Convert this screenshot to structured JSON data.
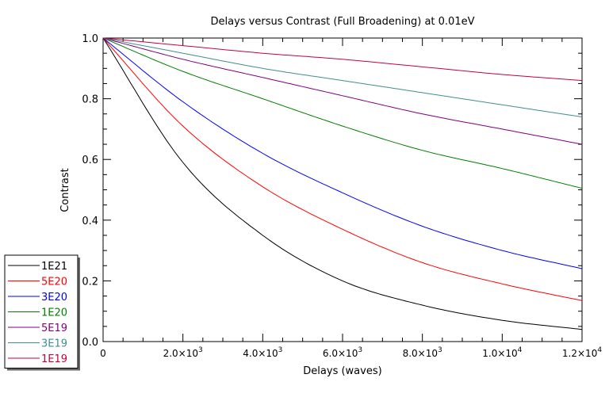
{
  "chart_data": {
    "type": "line",
    "title": "Delays versus Contrast (Full Broadening) at 0.01eV",
    "xlabel": "Delays (waves)",
    "ylabel": "Contrast",
    "xlim": [
      0,
      12000
    ],
    "ylim": [
      0.0,
      1.0
    ],
    "grid": false,
    "legend_position": "bottom-left (outside plot)",
    "x_ticks": [
      0,
      2000,
      4000,
      6000,
      8000,
      10000,
      12000
    ],
    "x_tick_labels": [
      {
        "mant": "0",
        "exp": ""
      },
      {
        "mant": "2.0×10",
        "exp": "3"
      },
      {
        "mant": "4.0×10",
        "exp": "3"
      },
      {
        "mant": "6.0×10",
        "exp": "3"
      },
      {
        "mant": "8.0×10",
        "exp": "3"
      },
      {
        "mant": "1.0×10",
        "exp": "4"
      },
      {
        "mant": "1.2×10",
        "exp": "4"
      }
    ],
    "y_ticks": [
      0.0,
      0.2,
      0.4,
      0.6,
      0.8,
      1.0
    ],
    "y_tick_labels": [
      "0.0",
      "0.2",
      "0.4",
      "0.6",
      "0.8",
      "1.0"
    ],
    "x": [
      0,
      2000,
      4000,
      6000,
      8000,
      10000,
      12000
    ],
    "series": [
      {
        "name": "1E21",
        "color": "#000000",
        "values": [
          1.0,
          0.59,
          0.35,
          0.2,
          0.12,
          0.07,
          0.04
        ]
      },
      {
        "name": "5E20",
        "color": "#ff0000",
        "values": [
          1.0,
          0.71,
          0.51,
          0.37,
          0.26,
          0.19,
          0.135
        ]
      },
      {
        "name": "3E20",
        "color": "#0000ff",
        "values": [
          1.0,
          0.79,
          0.62,
          0.49,
          0.38,
          0.3,
          0.24
        ]
      },
      {
        "name": "1E20",
        "color": "#007f00",
        "values": [
          1.0,
          0.89,
          0.8,
          0.71,
          0.63,
          0.57,
          0.505
        ]
      },
      {
        "name": "5E19",
        "color": "#7f007f",
        "values": [
          1.0,
          0.93,
          0.87,
          0.81,
          0.75,
          0.7,
          0.65
        ]
      },
      {
        "name": "3E19",
        "color": "#3f8f8f",
        "values": [
          1.0,
          0.95,
          0.9,
          0.86,
          0.82,
          0.78,
          0.74
        ]
      },
      {
        "name": "1E19",
        "color": "#c8003c",
        "values": [
          1.0,
          0.975,
          0.95,
          0.93,
          0.905,
          0.88,
          0.86
        ]
      }
    ]
  }
}
